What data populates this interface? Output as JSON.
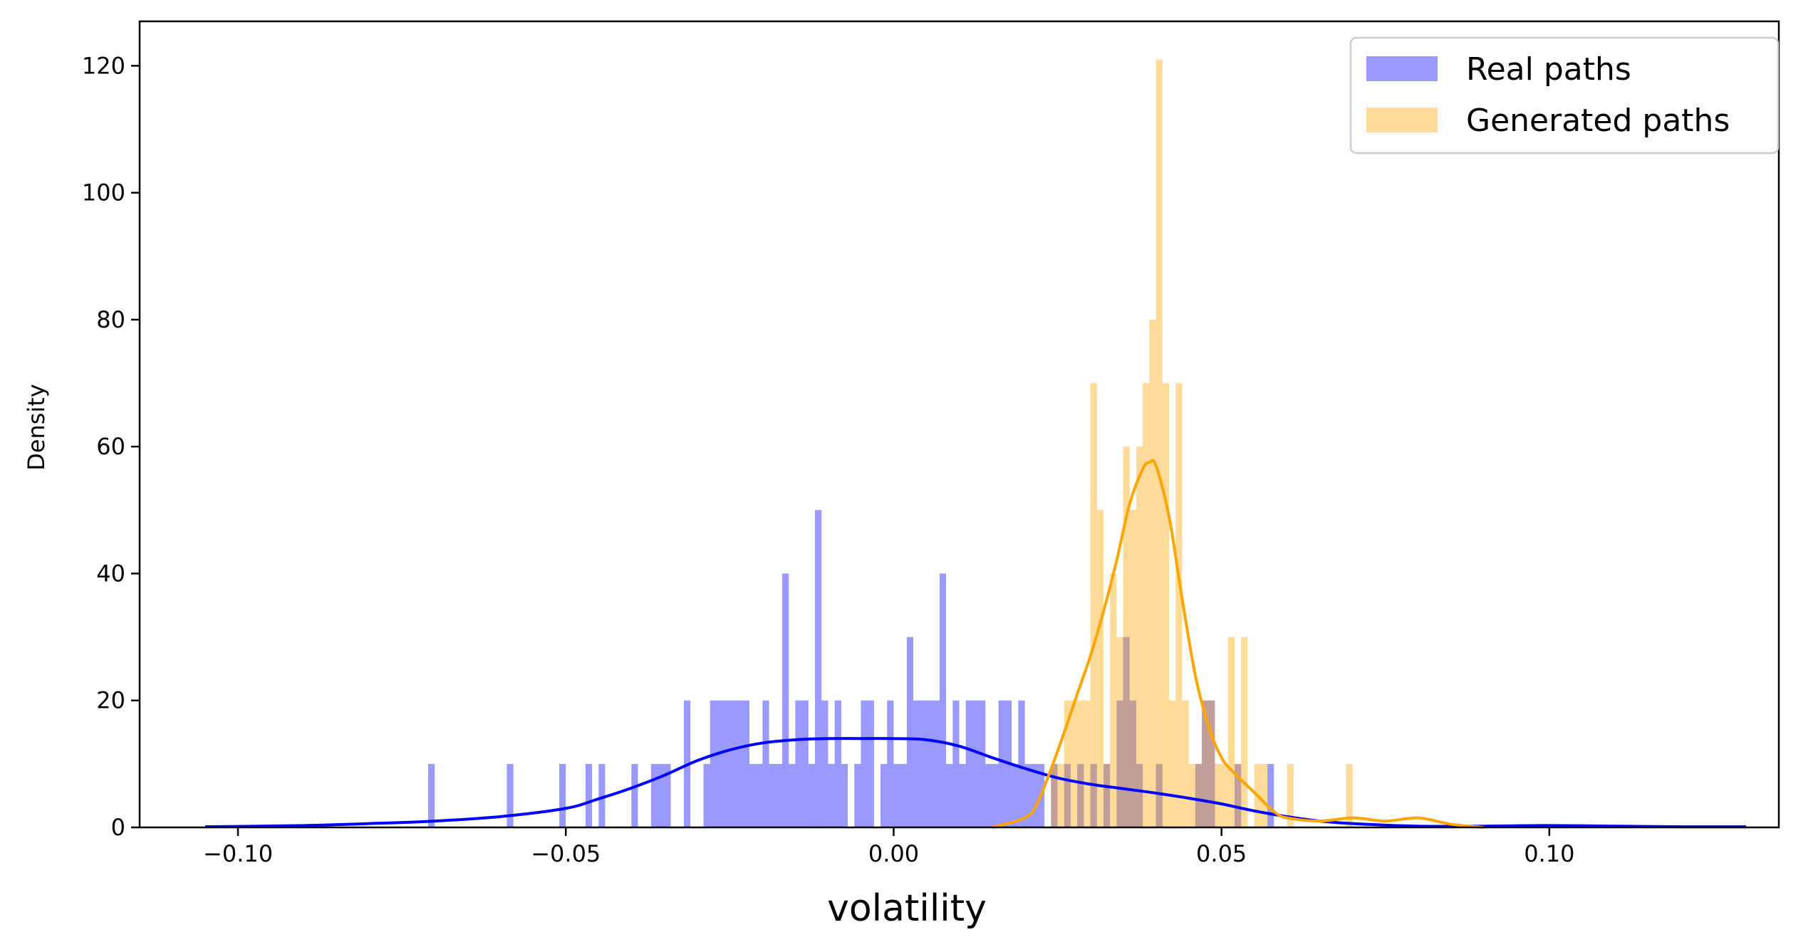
{
  "chart_data": {
    "type": "bar",
    "xlabel": "volatility",
    "ylabel": "Density",
    "xlim": [
      -0.115,
      0.135
    ],
    "ylim": [
      0,
      127
    ],
    "xticks": [
      -0.1,
      -0.05,
      0.0,
      0.05,
      0.1
    ],
    "xtick_labels": [
      "−0.10",
      "−0.05",
      "0.00",
      "0.05",
      "0.10"
    ],
    "yticks": [
      0,
      20,
      40,
      60,
      80,
      100,
      120
    ],
    "ytick_labels": [
      "0",
      "20",
      "40",
      "60",
      "80",
      "100",
      "120"
    ],
    "grid": false,
    "legend_position": "top-right",
    "colors": {
      "real": "#0000ff",
      "generated": "#ffa500"
    },
    "bin_width": 0.001,
    "series": [
      {
        "name": "Real paths",
        "kind": "histogram",
        "bins": [
          [
            -0.071,
            10
          ],
          [
            -0.059,
            10
          ],
          [
            -0.051,
            10
          ],
          [
            -0.047,
            10
          ],
          [
            -0.045,
            10
          ],
          [
            -0.04,
            10
          ],
          [
            -0.037,
            10
          ],
          [
            -0.036,
            10
          ],
          [
            -0.035,
            10
          ],
          [
            -0.032,
            20
          ],
          [
            -0.029,
            10
          ],
          [
            -0.028,
            20
          ],
          [
            -0.027,
            20
          ],
          [
            -0.026,
            20
          ],
          [
            -0.025,
            20
          ],
          [
            -0.024,
            20
          ],
          [
            -0.023,
            20
          ],
          [
            -0.022,
            10
          ],
          [
            -0.021,
            10
          ],
          [
            -0.02,
            20
          ],
          [
            -0.019,
            10
          ],
          [
            -0.018,
            10
          ],
          [
            -0.017,
            40
          ],
          [
            -0.016,
            10
          ],
          [
            -0.015,
            20
          ],
          [
            -0.014,
            20
          ],
          [
            -0.013,
            10
          ],
          [
            -0.012,
            50
          ],
          [
            -0.011,
            20
          ],
          [
            -0.01,
            10
          ],
          [
            -0.009,
            20
          ],
          [
            -0.008,
            10
          ],
          [
            -0.006,
            10
          ],
          [
            -0.005,
            20
          ],
          [
            -0.004,
            20
          ],
          [
            -0.002,
            10
          ],
          [
            -0.001,
            20
          ],
          [
            0.0,
            10
          ],
          [
            0.001,
            10
          ],
          [
            0.002,
            30
          ],
          [
            0.003,
            20
          ],
          [
            0.004,
            20
          ],
          [
            0.005,
            20
          ],
          [
            0.006,
            20
          ],
          [
            0.007,
            40
          ],
          [
            0.008,
            10
          ],
          [
            0.009,
            20
          ],
          [
            0.01,
            10
          ],
          [
            0.011,
            20
          ],
          [
            0.012,
            20
          ],
          [
            0.013,
            20
          ],
          [
            0.014,
            10
          ],
          [
            0.015,
            10
          ],
          [
            0.016,
            20
          ],
          [
            0.017,
            20
          ],
          [
            0.018,
            10
          ],
          [
            0.019,
            20
          ],
          [
            0.02,
            10
          ],
          [
            0.021,
            10
          ],
          [
            0.022,
            10
          ],
          [
            0.024,
            10
          ],
          [
            0.026,
            10
          ],
          [
            0.028,
            10
          ],
          [
            0.03,
            10
          ],
          [
            0.032,
            10
          ],
          [
            0.034,
            20
          ],
          [
            0.035,
            30
          ],
          [
            0.036,
            20
          ],
          [
            0.037,
            10
          ],
          [
            0.04,
            10
          ],
          [
            0.046,
            10
          ],
          [
            0.047,
            20
          ],
          [
            0.048,
            20
          ],
          [
            0.052,
            10
          ],
          [
            0.057,
            10
          ]
        ],
        "kde_x": [
          -0.105,
          -0.09,
          -0.08,
          -0.07,
          -0.06,
          -0.05,
          -0.045,
          -0.04,
          -0.035,
          -0.03,
          -0.025,
          -0.02,
          -0.015,
          -0.01,
          -0.005,
          0.0,
          0.005,
          0.01,
          0.015,
          0.02,
          0.025,
          0.03,
          0.035,
          0.04,
          0.045,
          0.05,
          0.055,
          0.06,
          0.065,
          0.07,
          0.08,
          0.09,
          0.1,
          0.11,
          0.12,
          0.13
        ],
        "kde_y": [
          0.1,
          0.3,
          0.6,
          1.0,
          1.7,
          3.0,
          4.5,
          6.2,
          8.2,
          10.5,
          12.2,
          13.3,
          13.8,
          14.0,
          14.0,
          14.0,
          13.8,
          12.8,
          11.0,
          9.3,
          7.8,
          6.8,
          6.1,
          5.4,
          4.6,
          3.7,
          2.6,
          1.7,
          1.0,
          0.6,
          0.2,
          0.2,
          0.3,
          0.2,
          0.1,
          0.1
        ]
      },
      {
        "name": "Generated paths",
        "kind": "histogram",
        "bins": [
          [
            0.024,
            10
          ],
          [
            0.025,
            10
          ],
          [
            0.026,
            20
          ],
          [
            0.027,
            20
          ],
          [
            0.028,
            20
          ],
          [
            0.029,
            20
          ],
          [
            0.03,
            70
          ],
          [
            0.031,
            50
          ],
          [
            0.032,
            10
          ],
          [
            0.033,
            40
          ],
          [
            0.034,
            30
          ],
          [
            0.035,
            60
          ],
          [
            0.036,
            50
          ],
          [
            0.037,
            60
          ],
          [
            0.038,
            70
          ],
          [
            0.039,
            80
          ],
          [
            0.04,
            121
          ],
          [
            0.041,
            70
          ],
          [
            0.042,
            20
          ],
          [
            0.043,
            70
          ],
          [
            0.044,
            20
          ],
          [
            0.045,
            10
          ],
          [
            0.046,
            10
          ],
          [
            0.047,
            20
          ],
          [
            0.048,
            20
          ],
          [
            0.049,
            10
          ],
          [
            0.05,
            10
          ],
          [
            0.051,
            30
          ],
          [
            0.052,
            10
          ],
          [
            0.053,
            30
          ],
          [
            0.055,
            10
          ],
          [
            0.056,
            10
          ],
          [
            0.06,
            10
          ],
          [
            0.069,
            10
          ]
        ],
        "kde_x": [
          0.015,
          0.02,
          0.022,
          0.025,
          0.028,
          0.03,
          0.032,
          0.034,
          0.036,
          0.038,
          0.039,
          0.04,
          0.042,
          0.044,
          0.046,
          0.048,
          0.05,
          0.052,
          0.055,
          0.058,
          0.06,
          0.065,
          0.07,
          0.075,
          0.08,
          0.085,
          0.09
        ],
        "kde_y": [
          0.0,
          1.5,
          4.0,
          12.0,
          21.0,
          27.0,
          34.0,
          42.0,
          51.0,
          56.5,
          57.5,
          57.0,
          49.0,
          36.0,
          24.0,
          16.0,
          11.0,
          8.5,
          5.5,
          2.5,
          1.5,
          1.0,
          1.5,
          1.0,
          1.5,
          0.5,
          0.0
        ]
      }
    ]
  }
}
